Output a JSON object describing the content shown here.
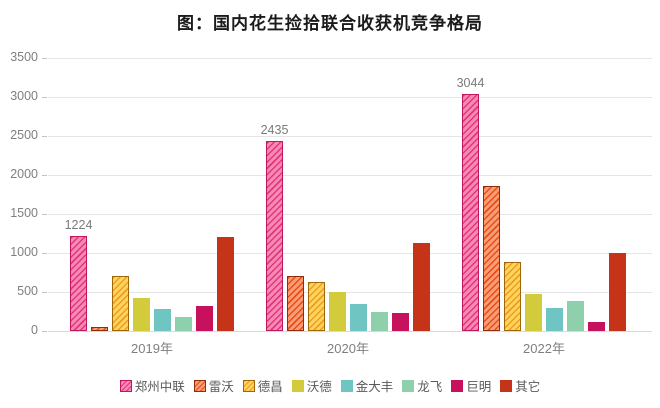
{
  "title": "图：国内花生捡拾联合收获机竞争格局",
  "chart_data": {
    "type": "bar",
    "title": "图：国内花生捡拾联合收获机竞争格局",
    "categories": [
      "2019年",
      "2020年",
      "2022年"
    ],
    "series": [
      {
        "name": "郑州中联",
        "values": [
          1224,
          2435,
          3044
        ],
        "fill": "#F58BB5",
        "hatch": "#E6337E",
        "border": "#C2185B",
        "pattern": true,
        "data_labels": [
          "1224",
          "2435",
          "3044"
        ]
      },
      {
        "name": "雷沃",
        "values": [
          50,
          700,
          1860
        ],
        "fill": "#FA9C74",
        "hatch": "#E84D18",
        "border": "#8E2E0C",
        "pattern": true
      },
      {
        "name": "德昌",
        "values": [
          700,
          630,
          880
        ],
        "fill": "#FFD45E",
        "hatch": "#EF9D1F",
        "border": "#A06708",
        "pattern": true
      },
      {
        "name": "沃德",
        "values": [
          420,
          500,
          480
        ],
        "fill": "#D2CB3C",
        "pattern": false
      },
      {
        "name": "金大丰",
        "values": [
          280,
          350,
          290
        ],
        "fill": "#6FC5C1",
        "pattern": false
      },
      {
        "name": "龙飞",
        "values": [
          180,
          240,
          380
        ],
        "fill": "#8FD0AC",
        "pattern": false
      },
      {
        "name": "巨明",
        "values": [
          320,
          230,
          110
        ],
        "fill": "#C8115C",
        "pattern": false
      },
      {
        "name": "其它",
        "values": [
          1200,
          1130,
          1000
        ],
        "fill": "#C53418",
        "pattern": false
      }
    ],
    "ylim": [
      0,
      3500
    ],
    "yticks": [
      0,
      500,
      1000,
      1500,
      2000,
      2500,
      3000,
      3500
    ],
    "grid": "horizontal",
    "legend_position": "bottom",
    "axis_text_color": "#7f7f7f",
    "gridline_color": "#e5e5e5"
  }
}
